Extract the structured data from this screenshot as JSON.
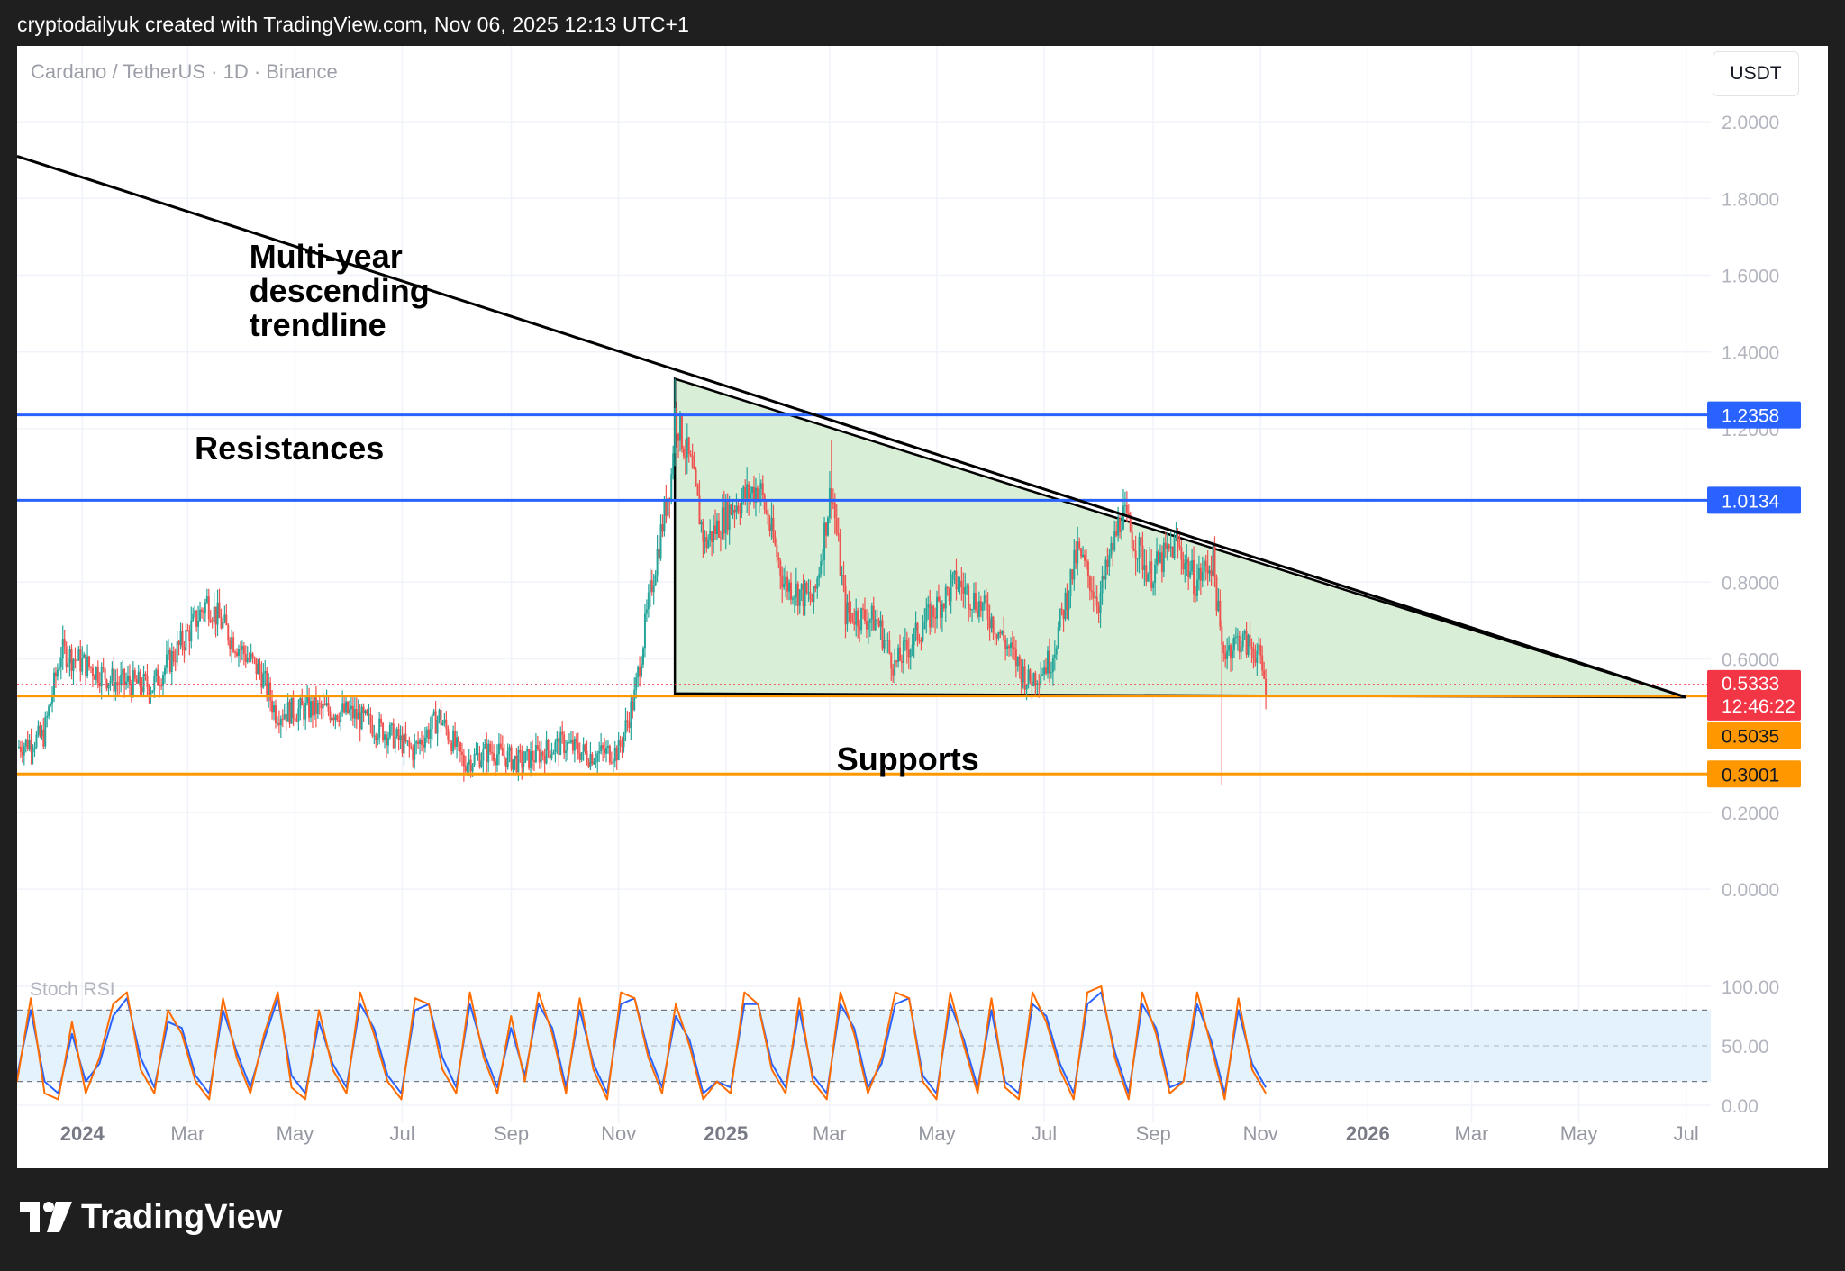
{
  "header": {
    "caption": "cryptodailyuk created with TradingView.com, Nov 06, 2025 12:13 UTC+1"
  },
  "chart_header": {
    "symbol": "Cardano / TetherUS · 1D · Binance",
    "currency_button": "USDT"
  },
  "brand": {
    "name": "TradingView",
    "logo_icon": "tradingview-logo-icon"
  },
  "colors": {
    "up": "#26a69a",
    "down": "#ef5350",
    "resistance": "#2962ff",
    "support": "#ff9800",
    "triangle_fill": "#d9eed6",
    "last_price": "#f23645",
    "stoch_k": "#2962ff",
    "stoch_d": "#ff6d00",
    "stoch_band": "#e3f2fd"
  },
  "chart_data": [
    {
      "type": "candlestick",
      "title": "",
      "x_ticks": [
        "2024",
        "Mar",
        "May",
        "Jul",
        "Sep",
        "Nov",
        "2025",
        "Mar",
        "May",
        "Jul",
        "Sep",
        "Nov",
        "2026",
        "Mar",
        "May",
        "Jul"
      ],
      "x_tick_dates": [
        "2024-01-01",
        "2024-03-01",
        "2024-05-01",
        "2024-07-01",
        "2024-09-01",
        "2024-11-01",
        "2025-01-01",
        "2025-03-01",
        "2025-05-01",
        "2025-07-01",
        "2025-09-01",
        "2025-11-01",
        "2026-01-01",
        "2026-03-01",
        "2026-05-01",
        "2026-07-01"
      ],
      "xlim": [
        "2023-11-25",
        "2026-07-15"
      ],
      "y_ticks": [
        "2.0000",
        "1.8000",
        "1.6000",
        "1.4000",
        "1.2000",
        "0.8000",
        "0.6000",
        "0.2000",
        "0.0000"
      ],
      "ylim": [
        -0.15,
        2.08
      ],
      "grid": true,
      "price_path": [
        [
          "2023-11-25",
          0.37
        ],
        [
          "2023-12-10",
          0.4
        ],
        [
          "2023-12-20",
          0.62
        ],
        [
          "2024-01-05",
          0.58
        ],
        [
          "2024-01-20",
          0.54
        ],
        [
          "2024-02-10",
          0.53
        ],
        [
          "2024-02-28",
          0.65
        ],
        [
          "2024-03-12",
          0.75
        ],
        [
          "2024-03-25",
          0.66
        ],
        [
          "2024-04-12",
          0.56
        ],
        [
          "2024-04-20",
          0.46
        ],
        [
          "2024-05-10",
          0.47
        ],
        [
          "2024-06-01",
          0.46
        ],
        [
          "2024-06-25",
          0.4
        ],
        [
          "2024-07-07",
          0.36
        ],
        [
          "2024-07-22",
          0.45
        ],
        [
          "2024-08-05",
          0.33
        ],
        [
          "2024-08-20",
          0.36
        ],
        [
          "2024-09-06",
          0.33
        ],
        [
          "2024-09-30",
          0.38
        ],
        [
          "2024-10-15",
          0.35
        ],
        [
          "2024-11-01",
          0.36
        ],
        [
          "2024-11-10",
          0.5
        ],
        [
          "2024-11-20",
          0.8
        ],
        [
          "2024-12-01",
          1.08
        ],
        [
          "2024-12-03",
          1.24
        ],
        [
          "2024-12-12",
          1.1
        ],
        [
          "2024-12-20",
          0.9
        ],
        [
          "2025-01-05",
          1.0
        ],
        [
          "2025-01-20",
          1.05
        ],
        [
          "2025-02-03",
          0.8
        ],
        [
          "2025-02-20",
          0.75
        ],
        [
          "2025-03-02",
          1.05
        ],
        [
          "2025-03-10",
          0.72
        ],
        [
          "2025-03-28",
          0.7
        ],
        [
          "2025-04-07",
          0.58
        ],
        [
          "2025-04-25",
          0.7
        ],
        [
          "2025-05-12",
          0.8
        ],
        [
          "2025-05-30",
          0.72
        ],
        [
          "2025-06-22",
          0.54
        ],
        [
          "2025-07-05",
          0.6
        ],
        [
          "2025-07-20",
          0.88
        ],
        [
          "2025-08-01",
          0.75
        ],
        [
          "2025-08-14",
          0.98
        ],
        [
          "2025-08-30",
          0.82
        ],
        [
          "2025-09-14",
          0.9
        ],
        [
          "2025-09-25",
          0.8
        ],
        [
          "2025-10-05",
          0.86
        ],
        [
          "2025-10-10",
          0.62
        ],
        [
          "2025-10-20",
          0.65
        ],
        [
          "2025-10-30",
          0.62
        ],
        [
          "2025-11-04",
          0.53
        ]
      ],
      "wicks": [
        {
          "date": "2024-12-03",
          "high": 1.33
        },
        {
          "date": "2025-03-02",
          "high": 1.17
        },
        {
          "date": "2024-08-05",
          "low": 0.28
        },
        {
          "date": "2025-10-10",
          "low": 0.27
        }
      ],
      "resistance_levels": [
        1.2358,
        1.0134
      ],
      "support_levels": [
        0.5035,
        0.3001
      ],
      "descending_trendline": [
        [
          "2023-11-25",
          1.91
        ],
        [
          "2026-07-01",
          0.5
        ]
      ],
      "triangle": [
        [
          "2024-12-03",
          1.33
        ],
        [
          "2026-07-01",
          0.5
        ],
        [
          "2024-12-03",
          0.51
        ]
      ],
      "price_labels": [
        {
          "text": "1.2358",
          "value": 1.2358,
          "kind": "resistance"
        },
        {
          "text": "1.0134",
          "value": 1.0134,
          "kind": "resistance"
        },
        {
          "text": "0.5333",
          "value": 0.5333,
          "kind": "last",
          "countdown": "12:46:22"
        },
        {
          "text": "0.5035",
          "value": 0.5035,
          "kind": "support"
        },
        {
          "text": "0.3001",
          "value": 0.3001,
          "kind": "support"
        }
      ],
      "annotations": [
        {
          "lines": [
            "Multi-year",
            "descending",
            "trendline"
          ],
          "date": "2024-04-05",
          "value": 1.62
        },
        {
          "lines": [
            "Resistances"
          ],
          "date": "2024-03-05",
          "value": 1.12
        },
        {
          "lines": [
            "Supports"
          ],
          "date": "2025-03-05",
          "value": 0.31
        }
      ]
    },
    {
      "type": "line",
      "title": "Stoch RSI",
      "y_ticks": [
        "100.00",
        "50.00",
        "0.00"
      ],
      "ylim": [
        -3,
        103
      ],
      "band": [
        20,
        80
      ],
      "series": [
        {
          "values": [
            20,
            90,
            10,
            5,
            70,
            10,
            40,
            85,
            95,
            30,
            10,
            80,
            60,
            20,
            5,
            90,
            40,
            10,
            60,
            95,
            15,
            5,
            80,
            30,
            10,
            95,
            60,
            20,
            5,
            90,
            85,
            30,
            10,
            95,
            40,
            10,
            75,
            20,
            95,
            60,
            10,
            90,
            30,
            5,
            95,
            90,
            40,
            10,
            85,
            50,
            5,
            20,
            10,
            95,
            85,
            30,
            10,
            90,
            20,
            5,
            95,
            60,
            10,
            40,
            95,
            90,
            20,
            5,
            95,
            50,
            10,
            90,
            15,
            5,
            95,
            70,
            30,
            5,
            95,
            100,
            40,
            5,
            95,
            60,
            10,
            20,
            95,
            50,
            5,
            90,
            30,
            10
          ]
        },
        {
          "values": [
            25,
            80,
            20,
            10,
            60,
            20,
            35,
            75,
            90,
            40,
            15,
            70,
            65,
            25,
            10,
            80,
            45,
            15,
            55,
            90,
            25,
            10,
            70,
            35,
            15,
            85,
            65,
            25,
            10,
            80,
            85,
            40,
            15,
            85,
            45,
            15,
            65,
            25,
            85,
            65,
            15,
            80,
            35,
            10,
            85,
            90,
            45,
            15,
            75,
            55,
            10,
            20,
            15,
            85,
            85,
            35,
            15,
            80,
            25,
            10,
            85,
            65,
            15,
            35,
            85,
            90,
            25,
            10,
            85,
            55,
            15,
            80,
            20,
            10,
            85,
            75,
            35,
            10,
            85,
            95,
            45,
            10,
            85,
            65,
            15,
            20,
            85,
            55,
            10,
            80,
            35,
            15
          ]
        }
      ],
      "start": "2023-11-25",
      "end": "2025-11-04"
    }
  ]
}
